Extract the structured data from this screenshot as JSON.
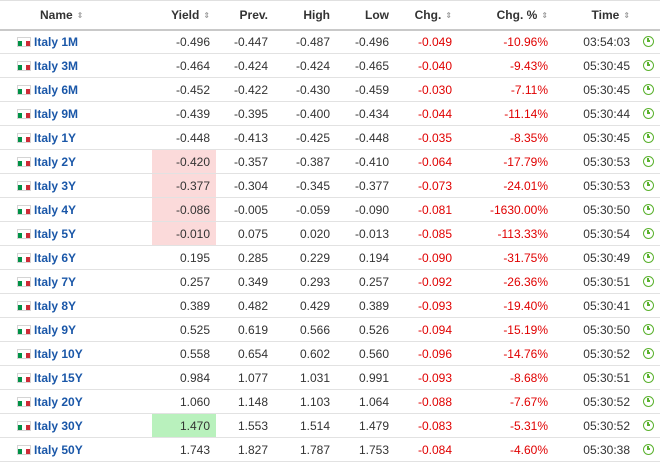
{
  "headers": {
    "name": "Name",
    "yield": "Yield",
    "prev": "Prev.",
    "high": "High",
    "low": "Low",
    "chg": "Chg.",
    "chg_pct": "Chg. %",
    "time": "Time",
    "sort_glyph": "⇕"
  },
  "rows": [
    {
      "name": "Italy 1M",
      "yield": "-0.496",
      "prev": "-0.447",
      "high": "-0.487",
      "low": "-0.496",
      "chg": "-0.049",
      "chg_pct": "-10.96%",
      "time": "03:54:03",
      "highlight": ""
    },
    {
      "name": "Italy 3M",
      "yield": "-0.464",
      "prev": "-0.424",
      "high": "-0.424",
      "low": "-0.465",
      "chg": "-0.040",
      "chg_pct": "-9.43%",
      "time": "05:30:45",
      "highlight": ""
    },
    {
      "name": "Italy 6M",
      "yield": "-0.452",
      "prev": "-0.422",
      "high": "-0.430",
      "low": "-0.459",
      "chg": "-0.030",
      "chg_pct": "-7.11%",
      "time": "05:30:45",
      "highlight": ""
    },
    {
      "name": "Italy 9M",
      "yield": "-0.439",
      "prev": "-0.395",
      "high": "-0.400",
      "low": "-0.434",
      "chg": "-0.044",
      "chg_pct": "-11.14%",
      "time": "05:30:44",
      "highlight": ""
    },
    {
      "name": "Italy 1Y",
      "yield": "-0.448",
      "prev": "-0.413",
      "high": "-0.425",
      "low": "-0.448",
      "chg": "-0.035",
      "chg_pct": "-8.35%",
      "time": "05:30:45",
      "highlight": ""
    },
    {
      "name": "Italy 2Y",
      "yield": "-0.420",
      "prev": "-0.357",
      "high": "-0.387",
      "low": "-0.410",
      "chg": "-0.064",
      "chg_pct": "-17.79%",
      "time": "05:30:53",
      "highlight": "red"
    },
    {
      "name": "Italy 3Y",
      "yield": "-0.377",
      "prev": "-0.304",
      "high": "-0.345",
      "low": "-0.377",
      "chg": "-0.073",
      "chg_pct": "-24.01%",
      "time": "05:30:53",
      "highlight": "red"
    },
    {
      "name": "Italy 4Y",
      "yield": "-0.086",
      "prev": "-0.005",
      "high": "-0.059",
      "low": "-0.090",
      "chg": "-0.081",
      "chg_pct": "-1630.00%",
      "time": "05:30:50",
      "highlight": "red"
    },
    {
      "name": "Italy 5Y",
      "yield": "-0.010",
      "prev": "0.075",
      "high": "0.020",
      "low": "-0.013",
      "chg": "-0.085",
      "chg_pct": "-113.33%",
      "time": "05:30:54",
      "highlight": "red"
    },
    {
      "name": "Italy 6Y",
      "yield": "0.195",
      "prev": "0.285",
      "high": "0.229",
      "low": "0.194",
      "chg": "-0.090",
      "chg_pct": "-31.75%",
      "time": "05:30:49",
      "highlight": ""
    },
    {
      "name": "Italy 7Y",
      "yield": "0.257",
      "prev": "0.349",
      "high": "0.293",
      "low": "0.257",
      "chg": "-0.092",
      "chg_pct": "-26.36%",
      "time": "05:30:51",
      "highlight": ""
    },
    {
      "name": "Italy 8Y",
      "yield": "0.389",
      "prev": "0.482",
      "high": "0.429",
      "low": "0.389",
      "chg": "-0.093",
      "chg_pct": "-19.40%",
      "time": "05:30:41",
      "highlight": ""
    },
    {
      "name": "Italy 9Y",
      "yield": "0.525",
      "prev": "0.619",
      "high": "0.566",
      "low": "0.526",
      "chg": "-0.094",
      "chg_pct": "-15.19%",
      "time": "05:30:50",
      "highlight": ""
    },
    {
      "name": "Italy 10Y",
      "yield": "0.558",
      "prev": "0.654",
      "high": "0.602",
      "low": "0.560",
      "chg": "-0.096",
      "chg_pct": "-14.76%",
      "time": "05:30:52",
      "highlight": ""
    },
    {
      "name": "Italy 15Y",
      "yield": "0.984",
      "prev": "1.077",
      "high": "1.031",
      "low": "0.991",
      "chg": "-0.093",
      "chg_pct": "-8.68%",
      "time": "05:30:51",
      "highlight": ""
    },
    {
      "name": "Italy 20Y",
      "yield": "1.060",
      "prev": "1.148",
      "high": "1.103",
      "low": "1.064",
      "chg": "-0.088",
      "chg_pct": "-7.67%",
      "time": "05:30:52",
      "highlight": ""
    },
    {
      "name": "Italy 30Y",
      "yield": "1.470",
      "prev": "1.553",
      "high": "1.514",
      "low": "1.479",
      "chg": "-0.083",
      "chg_pct": "-5.31%",
      "time": "05:30:52",
      "highlight": "green"
    },
    {
      "name": "Italy 50Y",
      "yield": "1.743",
      "prev": "1.827",
      "high": "1.787",
      "low": "1.753",
      "chg": "-0.084",
      "chg_pct": "-4.60%",
      "time": "05:30:38",
      "highlight": ""
    }
  ],
  "colors": {
    "negative": "#e00000",
    "link": "#1a57a8",
    "highlight_down": "#fbdada",
    "highlight_up": "#b9f1bd",
    "clock": "#5bb22f"
  },
  "icons": {
    "flag": "italy-flag-icon",
    "clock": "clock-icon",
    "sort": "sort-arrows-icon"
  }
}
